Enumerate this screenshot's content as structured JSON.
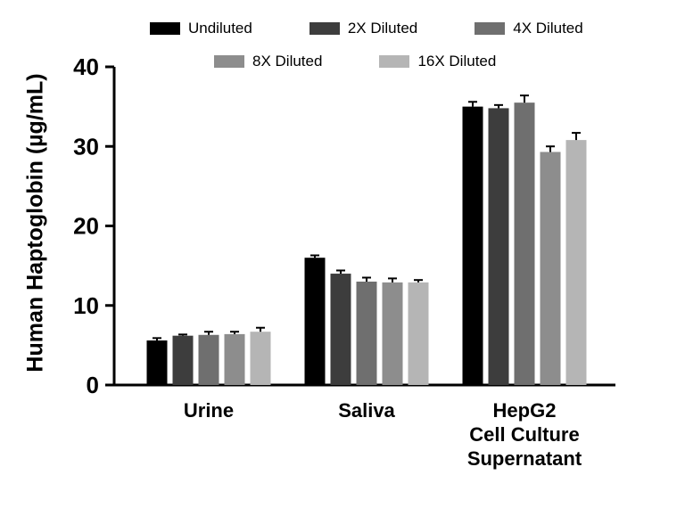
{
  "chart_data": {
    "type": "bar",
    "title": "",
    "xlabel": "",
    "ylabel": "Human Haptoglobin (µg/mL)",
    "ylim": [
      0,
      40
    ],
    "yticks": [
      0,
      10,
      20,
      30,
      40
    ],
    "grid": false,
    "legend_position": "top",
    "error_bar_color": "#000000",
    "categories": [
      "Urine",
      "Saliva",
      "HepG2\nCell Culture\nSupernatant"
    ],
    "series": [
      {
        "name": "Undiluted",
        "color": "#000000",
        "values": [
          5.6,
          16.0,
          35.0
        ],
        "errors": [
          0.3,
          0.3,
          0.6
        ]
      },
      {
        "name": "2X Diluted",
        "color": "#3d3d3d",
        "values": [
          6.2,
          14.0,
          34.8
        ],
        "errors": [
          0.15,
          0.4,
          0.4
        ]
      },
      {
        "name": "4X Diluted",
        "color": "#6f6f6f",
        "values": [
          6.3,
          13.0,
          35.5
        ],
        "errors": [
          0.4,
          0.5,
          0.9
        ]
      },
      {
        "name": "8X Diluted",
        "color": "#8d8d8d",
        "values": [
          6.4,
          12.9,
          29.3
        ],
        "errors": [
          0.3,
          0.5,
          0.7
        ]
      },
      {
        "name": "16X Diluted",
        "color": "#b5b5b5",
        "values": [
          6.7,
          12.9,
          30.8
        ],
        "errors": [
          0.5,
          0.3,
          0.9
        ]
      }
    ],
    "legend_rows": [
      [
        0,
        1,
        2
      ],
      [
        3,
        4
      ]
    ]
  }
}
